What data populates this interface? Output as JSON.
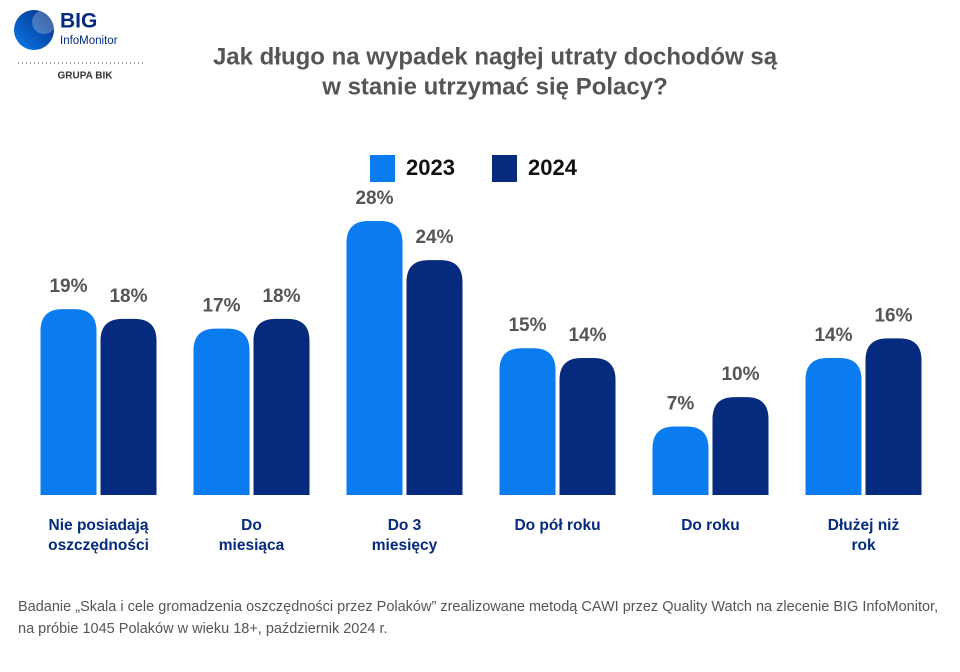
{
  "logo": {
    "name": "BIG",
    "sub": "InfoMonitor",
    "group": "GRUPA BIK"
  },
  "chart_data": {
    "type": "bar",
    "title": [
      "Jak długo na wypadek nagłej utraty dochodów są",
      "w stanie utrzymać się Polacy?"
    ],
    "categories": [
      [
        "Nie posiadają",
        "oszczędności"
      ],
      [
        "Do",
        "miesiąca"
      ],
      [
        "Do 3",
        "miesięcy"
      ],
      [
        "Do pół roku"
      ],
      [
        "Do roku"
      ],
      [
        "Dłużej niż",
        "rok"
      ]
    ],
    "series": [
      {
        "name": "2023",
        "color": "#0a7cf0",
        "values": [
          19,
          17,
          28,
          15,
          7,
          14
        ],
        "value_labels": [
          "19%",
          "17%",
          "28%",
          "15%",
          "7%",
          "14%"
        ]
      },
      {
        "name": "2024",
        "color": "#052a7e",
        "values": [
          18,
          18,
          24,
          14,
          10,
          16
        ],
        "value_labels": [
          "18%",
          "18%",
          "24%",
          "14%",
          "10%",
          "16%"
        ]
      }
    ],
    "legend": "top"
  },
  "footnote": "Badanie „Skala i cele gromadzenia oszczędności przez Polaków” zrealizowane metodą CAWI przez Quality Watch na zlecenie BIG InfoMonitor, na próbie 1045 Polaków w wieku 18+, październik 2024 r."
}
